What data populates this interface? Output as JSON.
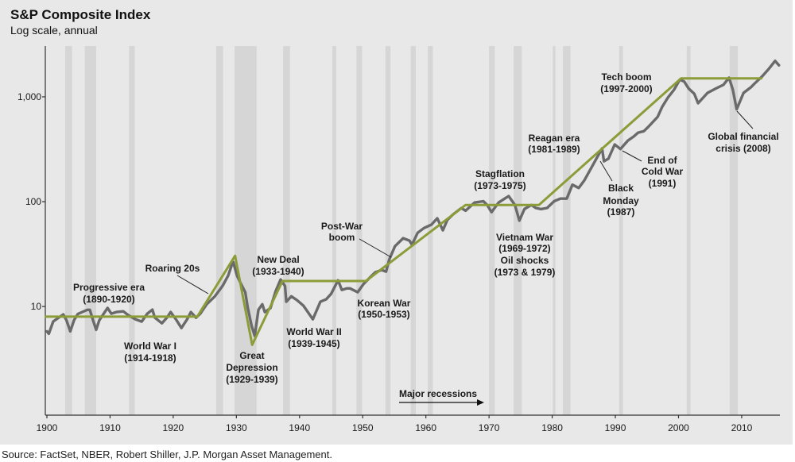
{
  "header": {
    "title": "S&P Composite Index",
    "subtitle": "Log scale, annual"
  },
  "source": "Source: FactSet, NBER, Robert Shiller, J.P. Morgan Asset Management.",
  "colors": {
    "background": "#e8e8e8",
    "recession_band": "#d6d6d6",
    "index_line": "#6a6a6a",
    "trend_line": "#8c9c38",
    "axis": "#333333"
  },
  "chart_data": {
    "type": "line",
    "title": "S&P Composite Index",
    "subtitle": "Log scale, annual",
    "xlabel": "",
    "ylabel": "",
    "yscale": "log",
    "grid": false,
    "xlim": [
      1899.75,
      2016.05
    ],
    "ylim": [
      0.92,
      3050
    ],
    "x_ticks": [
      {
        "value": 1900,
        "label": "1900"
      },
      {
        "value": 1910,
        "label": "1910"
      },
      {
        "value": 1920,
        "label": "1920"
      },
      {
        "value": 1930,
        "label": "1930"
      },
      {
        "value": 1940,
        "label": "1940"
      },
      {
        "value": 1950,
        "label": "1950"
      },
      {
        "value": 1960,
        "label": "1960"
      },
      {
        "value": 1970,
        "label": "1970"
      },
      {
        "value": 1980,
        "label": "1980"
      },
      {
        "value": 1990,
        "label": "1990"
      },
      {
        "value": 2000,
        "label": "2000"
      },
      {
        "value": 2010,
        "label": "2010"
      }
    ],
    "y_ticks": [
      {
        "value": 1000,
        "label": "1,000"
      },
      {
        "value": 100,
        "label": "100"
      },
      {
        "value": 10,
        "label": "10"
      }
    ],
    "recessions": [
      [
        1902.9,
        1904.0
      ],
      [
        1906.0,
        1907.8
      ],
      [
        1913.0,
        1913.9
      ],
      [
        1926.8,
        1927.9
      ],
      [
        1929.7,
        1933.2
      ],
      [
        1937.4,
        1938.5
      ],
      [
        1945.2,
        1945.8
      ],
      [
        1949.0,
        1949.9
      ],
      [
        1953.6,
        1954.4
      ],
      [
        1957.6,
        1958.4
      ],
      [
        1960.3,
        1961.1
      ],
      [
        1970.0,
        1970.9
      ],
      [
        1973.9,
        1975.2
      ],
      [
        1980.1,
        1980.5
      ],
      [
        1981.7,
        1982.9
      ],
      [
        1990.6,
        1991.2
      ],
      [
        2001.3,
        2001.9
      ],
      [
        2008.1,
        2009.4
      ]
    ],
    "recessions_label": "Major recessions",
    "index_series": [
      [
        1900.0,
        5.8
      ],
      [
        1900.3,
        5.5
      ],
      [
        1901.0,
        7.2
      ],
      [
        1902.6,
        8.4
      ],
      [
        1903.1,
        7.4
      ],
      [
        1903.7,
        5.8
      ],
      [
        1904.3,
        7.4
      ],
      [
        1904.9,
        8.5
      ],
      [
        1906.4,
        9.3
      ],
      [
        1906.8,
        9.3
      ],
      [
        1907.3,
        7.4
      ],
      [
        1907.8,
        6.0
      ],
      [
        1908.3,
        7.4
      ],
      [
        1909.6,
        9.7
      ],
      [
        1910.2,
        8.55
      ],
      [
        1911.0,
        8.85
      ],
      [
        1912.1,
        9.0
      ],
      [
        1912.9,
        8.26
      ],
      [
        1914.0,
        7.56
      ],
      [
        1915.0,
        7.18
      ],
      [
        1915.9,
        8.55
      ],
      [
        1916.7,
        9.33
      ],
      [
        1917.1,
        7.83
      ],
      [
        1918.2,
        6.93
      ],
      [
        1919.0,
        7.83
      ],
      [
        1919.6,
        8.85
      ],
      [
        1920.5,
        7.43
      ],
      [
        1921.3,
        6.24
      ],
      [
        1922.2,
        7.56
      ],
      [
        1922.8,
        8.85
      ],
      [
        1923.6,
        7.83
      ],
      [
        1924.3,
        8.55
      ],
      [
        1925.3,
        10.5
      ],
      [
        1926.6,
        12.5
      ],
      [
        1927.8,
        15.7
      ],
      [
        1928.7,
        19.7
      ],
      [
        1929.3,
        25.2
      ],
      [
        1929.5,
        26.6
      ],
      [
        1930.1,
        19.7
      ],
      [
        1930.7,
        16.6
      ],
      [
        1931.4,
        13.7
      ],
      [
        1931.8,
        9.8
      ],
      [
        1932.4,
        6.58
      ],
      [
        1932.9,
        5.25
      ],
      [
        1933.5,
        9.33
      ],
      [
        1934.1,
        10.5
      ],
      [
        1934.5,
        8.85
      ],
      [
        1935.4,
        9.66
      ],
      [
        1936.2,
        13.9
      ],
      [
        1937.0,
        18.1
      ],
      [
        1937.7,
        15.7
      ],
      [
        1937.9,
        11.1
      ],
      [
        1938.7,
        12.5
      ],
      [
        1939.6,
        11.5
      ],
      [
        1940.6,
        10.2
      ],
      [
        1942.1,
        7.56
      ],
      [
        1943.3,
        11.1
      ],
      [
        1944.2,
        11.7
      ],
      [
        1945.0,
        13.2
      ],
      [
        1946.1,
        17.8
      ],
      [
        1946.7,
        14.4
      ],
      [
        1947.5,
        14.9
      ],
      [
        1948.0,
        14.9
      ],
      [
        1949.2,
        13.7
      ],
      [
        1950.1,
        16.3
      ],
      [
        1951.1,
        18.8
      ],
      [
        1952.0,
        21.2
      ],
      [
        1953.0,
        22.3
      ],
      [
        1953.7,
        21.5
      ],
      [
        1954.2,
        28.0
      ],
      [
        1955.1,
        37.6
      ],
      [
        1956.4,
        44.8
      ],
      [
        1957.4,
        42.5
      ],
      [
        1957.8,
        38.9
      ],
      [
        1958.7,
        50.5
      ],
      [
        1959.7,
        56.0
      ],
      [
        1960.9,
        60.5
      ],
      [
        1961.8,
        69.4
      ],
      [
        1962.7,
        53.3
      ],
      [
        1963.4,
        67.0
      ],
      [
        1964.3,
        75.5
      ],
      [
        1965.6,
        86.7
      ],
      [
        1966.3,
        82.0
      ],
      [
        1967.7,
        98.0
      ],
      [
        1969.1,
        101.0
      ],
      [
        1969.7,
        93.0
      ],
      [
        1970.4,
        79.5
      ],
      [
        1971.5,
        98.0
      ],
      [
        1973.1,
        113.0
      ],
      [
        1974.1,
        93.0
      ],
      [
        1974.8,
        66.0
      ],
      [
        1975.6,
        85.0
      ],
      [
        1976.7,
        93.0
      ],
      [
        1977.4,
        87.0
      ],
      [
        1978.2,
        85.0
      ],
      [
        1979.2,
        87.0
      ],
      [
        1980.3,
        101.0
      ],
      [
        1981.3,
        107.0
      ],
      [
        1982.3,
        107.0
      ],
      [
        1983.2,
        145.0
      ],
      [
        1984.2,
        135.0
      ],
      [
        1985.1,
        160.0
      ],
      [
        1986.3,
        216.0
      ],
      [
        1987.9,
        322.0
      ],
      [
        1988.2,
        243.0
      ],
      [
        1988.9,
        257.0
      ],
      [
        1989.9,
        351.0
      ],
      [
        1990.8,
        318.0
      ],
      [
        1992.0,
        383.0
      ],
      [
        1992.9,
        418.0
      ],
      [
        1993.6,
        455.0
      ],
      [
        1994.5,
        470.0
      ],
      [
        1995.2,
        515.0
      ],
      [
        1996.7,
        645.0
      ],
      [
        1997.4,
        800.0
      ],
      [
        1998.3,
        980.0
      ],
      [
        1999.3,
        1170.0
      ],
      [
        2000.2,
        1460.0
      ],
      [
        2000.9,
        1400.0
      ],
      [
        2001.6,
        1200.0
      ],
      [
        2002.5,
        1070.0
      ],
      [
        2003.1,
        870.0
      ],
      [
        2004.6,
        1090.0
      ],
      [
        2005.9,
        1200.0
      ],
      [
        2007.1,
        1300.0
      ],
      [
        2008.0,
        1520.0
      ],
      [
        2008.6,
        1170.0
      ],
      [
        2009.2,
        760.0
      ],
      [
        2010.3,
        1090.0
      ],
      [
        2011.5,
        1240.0
      ],
      [
        2012.1,
        1350.0
      ],
      [
        2013.2,
        1560.0
      ],
      [
        2014.3,
        1850.0
      ],
      [
        2015.3,
        2200.0
      ],
      [
        2015.9,
        2000.0
      ]
    ],
    "trend_series": [
      [
        1899.8,
        8.0
      ],
      [
        1923.8,
        8.0
      ],
      [
        1929.8,
        30.5
      ],
      [
        1932.5,
        4.3
      ],
      [
        1937.3,
        17.5
      ],
      [
        1950.5,
        17.5
      ],
      [
        1966.3,
        93.0
      ],
      [
        1977.9,
        93.0
      ],
      [
        2000.4,
        1500.0
      ],
      [
        2013.1,
        1500.0
      ]
    ],
    "annotations": [
      {
        "lines": [
          "Progressive era",
          "(1890-1920)"
        ]
      },
      {
        "lines": [
          "World War I",
          "(1914-1918)"
        ]
      },
      {
        "lines": [
          "Roaring 20s"
        ]
      },
      {
        "lines": [
          "Great",
          "Depression",
          "(1929-1939)"
        ]
      },
      {
        "lines": [
          "New Deal",
          "(1933-1940)"
        ]
      },
      {
        "lines": [
          "World War II",
          "(1939-1945)"
        ]
      },
      {
        "lines": [
          "Post-War",
          "boom"
        ]
      },
      {
        "lines": [
          "Korean War",
          "(1950-1953)"
        ]
      },
      {
        "lines": [
          "Stagflation",
          "(1973-1975)"
        ]
      },
      {
        "lines": [
          "Vietnam War",
          "(1969-1972)",
          "Oil shocks",
          "(1973 & 1979)"
        ]
      },
      {
        "lines": [
          "Reagan era",
          "(1981-1989)"
        ]
      },
      {
        "lines": [
          "Black",
          "Monday",
          "(1987)"
        ]
      },
      {
        "lines": [
          "End of",
          "Cold War",
          "(1991)"
        ]
      },
      {
        "lines": [
          "Tech boom",
          "(1997-2000)"
        ]
      },
      {
        "lines": [
          "Global financial",
          "crisis (2008)"
        ]
      }
    ]
  }
}
